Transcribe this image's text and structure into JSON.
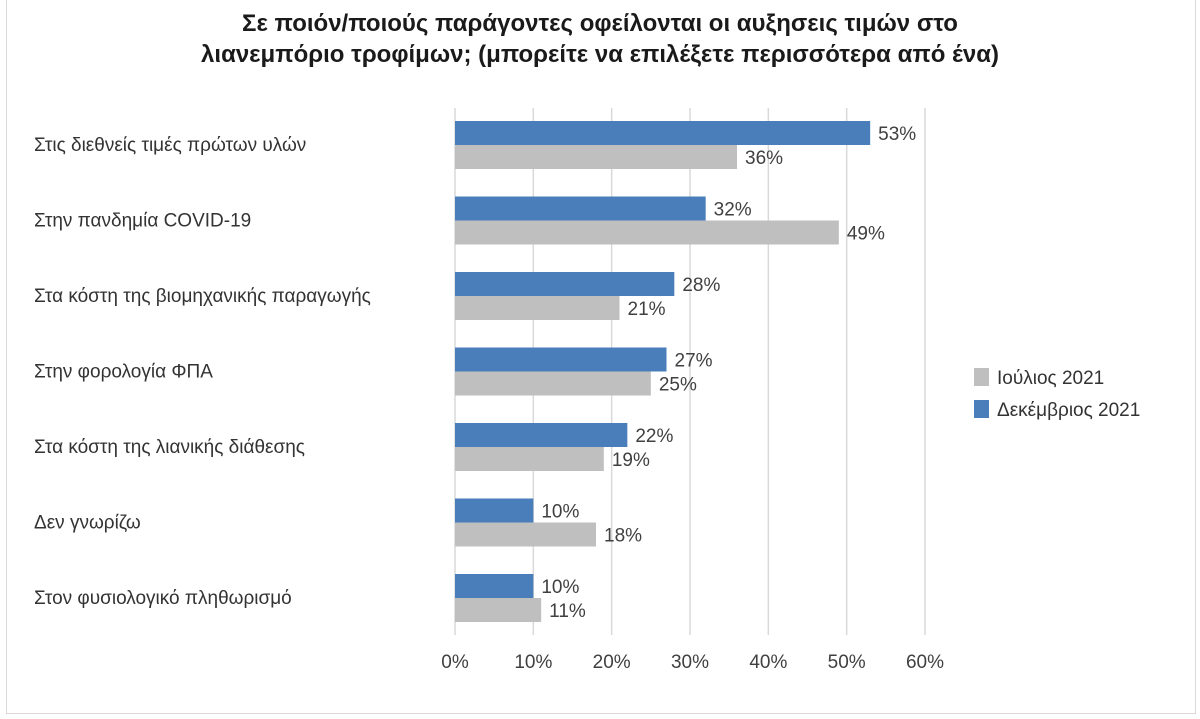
{
  "chart_data": {
    "type": "bar",
    "orientation": "horizontal",
    "title_lines": [
      "Σε ποιόν/ποιούς παράγοντες οφείλονται οι αυξησεις τιμών στο",
      "λιανεμπόριο τροφίμων; (μπορείτε να επιλέξετε περισσότερα από ένα)"
    ],
    "categories": [
      "Στις διεθνείς τιμές πρώτων υλών",
      "Στην πανδημία COVID-19",
      "Στα κόστη της βιομηχανικής παραγωγής",
      "Στην φορολογία ΦΠΑ",
      "Στα κόστη της λιανικής διάθεσης",
      "Δεν γνωρίζω",
      "Στον φυσιολογικό πληθωρισμό"
    ],
    "series": [
      {
        "name": "Δεκέμβριος 2021",
        "color": "#4a7ebb",
        "values": [
          53,
          32,
          28,
          27,
          22,
          10,
          10
        ],
        "labels": [
          "53%",
          "32%",
          "28%",
          "27%",
          "22%",
          "10%",
          "10%"
        ]
      },
      {
        "name": "Ιούλιος 2021",
        "color": "#bfbfbf",
        "values": [
          36,
          49,
          21,
          25,
          19,
          18,
          11
        ],
        "labels": [
          "36%",
          "49%",
          "21%",
          "25%",
          "19%",
          "18%",
          "11%"
        ]
      }
    ],
    "xlim": [
      0,
      60
    ],
    "x_ticks": [
      "0%",
      "10%",
      "20%",
      "30%",
      "40%",
      "50%",
      "60%"
    ],
    "grid": true,
    "legend_position": "right",
    "legend_order": [
      "Ιούλιος 2021",
      "Δεκέμβριος 2021"
    ]
  }
}
